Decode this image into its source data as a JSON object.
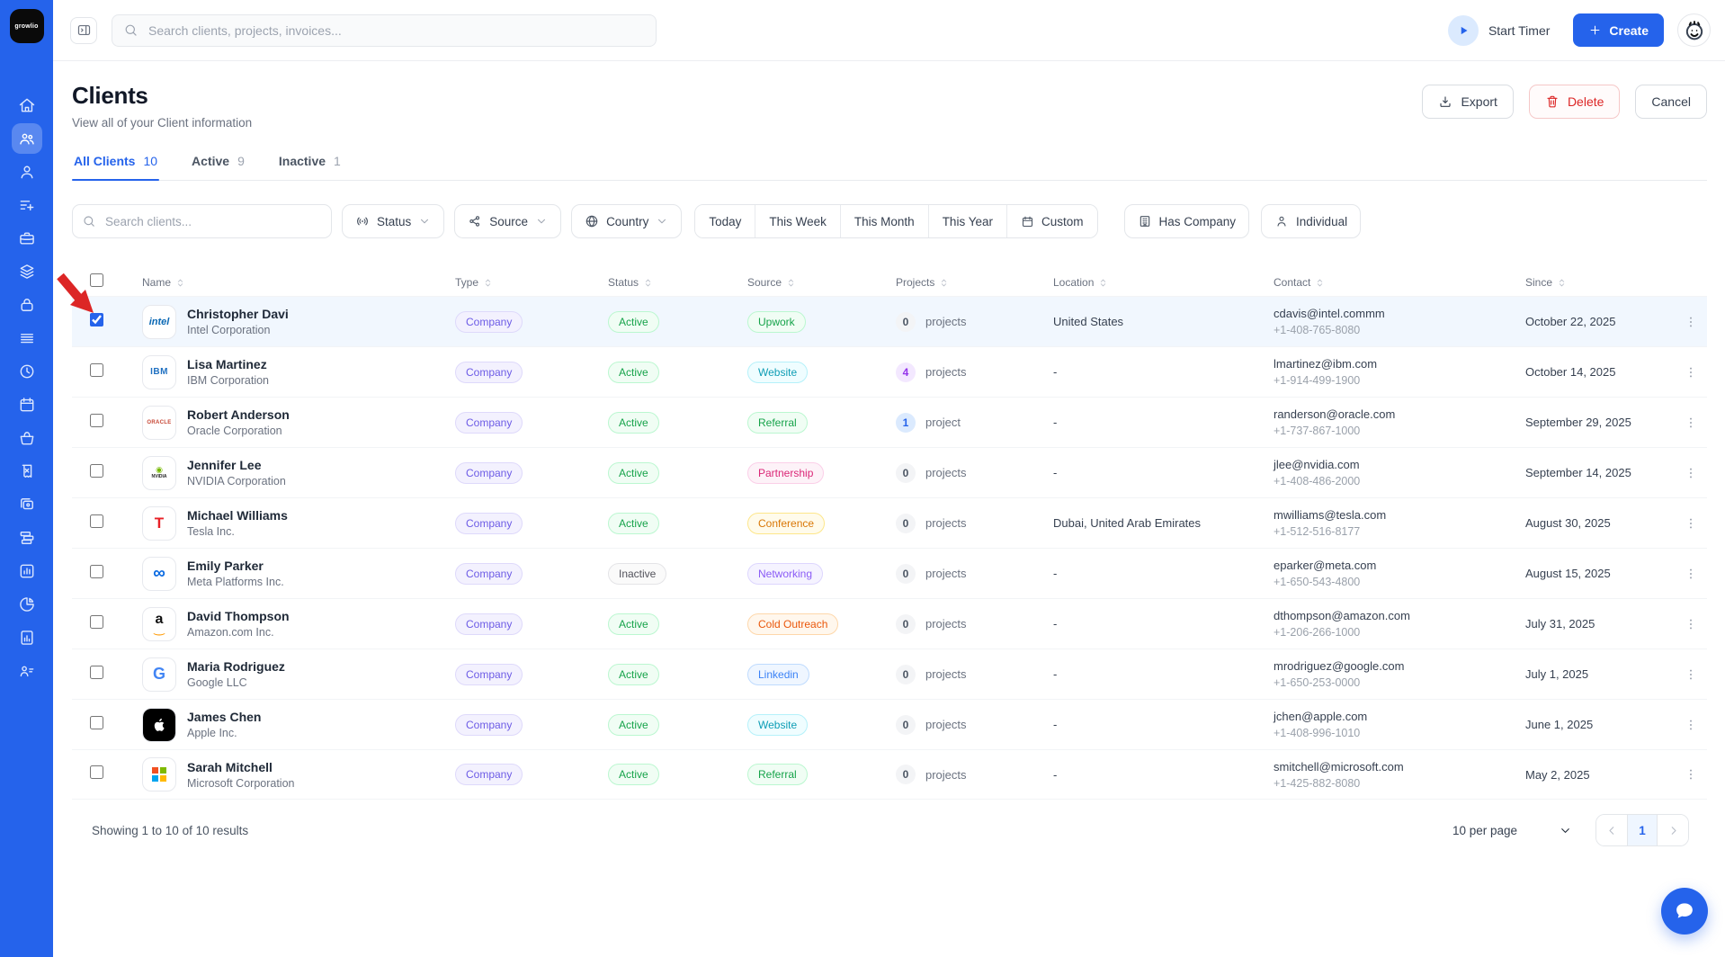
{
  "colors": {
    "accent": "#2563eb",
    "danger": "#dc2626",
    "sidebar_bg": "#2563eb",
    "selected_row_bg": "#f1f7fe",
    "annotation_arrow": "#dc2626"
  },
  "topbar": {
    "logo_text": "growlio",
    "search_placeholder": "Search clients, projects, invoices...",
    "start_timer_label": "Start Timer",
    "create_label": "Create"
  },
  "sidebar": {
    "items": [
      {
        "icon": "home",
        "active": false
      },
      {
        "icon": "clients",
        "active": true
      },
      {
        "icon": "contact",
        "active": false
      },
      {
        "icon": "list-add",
        "active": false
      },
      {
        "icon": "briefcase",
        "active": false
      },
      {
        "icon": "layers",
        "active": false
      },
      {
        "icon": "lock-bag",
        "active": false
      },
      {
        "icon": "rows",
        "active": false
      },
      {
        "icon": "clock",
        "active": false
      },
      {
        "icon": "calendar",
        "active": false
      },
      {
        "icon": "basket",
        "active": false
      },
      {
        "icon": "receipt",
        "active": false
      },
      {
        "icon": "cards",
        "active": false
      },
      {
        "icon": "stack",
        "active": false
      },
      {
        "icon": "chart-square",
        "active": false
      },
      {
        "icon": "pie-chart",
        "active": false
      },
      {
        "icon": "report",
        "active": false
      },
      {
        "icon": "team",
        "active": false
      }
    ]
  },
  "page": {
    "title": "Clients",
    "subtitle": "View all of your Client information",
    "export_label": "Export",
    "delete_label": "Delete",
    "cancel_label": "Cancel"
  },
  "tabs": [
    {
      "label": "All Clients",
      "count": "10",
      "active": true
    },
    {
      "label": "Active",
      "count": "9",
      "active": false
    },
    {
      "label": "Inactive",
      "count": "1",
      "active": false
    }
  ],
  "filters": {
    "search_placeholder": "Search clients...",
    "dropdowns": [
      {
        "label": "Status",
        "icon": "status"
      },
      {
        "label": "Source",
        "icon": "share"
      },
      {
        "label": "Country",
        "icon": "globe"
      }
    ],
    "date_ranges": [
      "Today",
      "This Week",
      "This Month",
      "This Year"
    ],
    "custom_label": "Custom",
    "toggles": [
      {
        "label": "Has Company",
        "icon": "building"
      },
      {
        "label": "Individual",
        "icon": "person"
      }
    ]
  },
  "table": {
    "columns": [
      "Name",
      "Type",
      "Status",
      "Source",
      "Projects",
      "Location",
      "Contact",
      "Since"
    ],
    "rows": [
      {
        "name": "Christopher Davi",
        "company": "Intel Corporation",
        "logo": "intel",
        "type": "Company",
        "status": {
          "label": "Active",
          "color": "green"
        },
        "source": {
          "label": "Upwork",
          "color": "green"
        },
        "projects": {
          "count": "0",
          "label": "projects",
          "color": "gray"
        },
        "location": "United States",
        "email": "cdavis@intel.commm",
        "phone": "+1-408-765-8080",
        "since": "October 22, 2025",
        "selected": true
      },
      {
        "name": "Lisa Martinez",
        "company": "IBM Corporation",
        "logo": "ibm",
        "type": "Company",
        "status": {
          "label": "Active",
          "color": "green"
        },
        "source": {
          "label": "Website",
          "color": "cyan"
        },
        "projects": {
          "count": "4",
          "label": "projects",
          "color": "purple"
        },
        "location": "-",
        "email": "lmartinez@ibm.com",
        "phone": "+1-914-499-1900",
        "since": "October 14, 2025",
        "selected": false
      },
      {
        "name": "Robert Anderson",
        "company": "Oracle Corporation",
        "logo": "oracle",
        "type": "Company",
        "status": {
          "label": "Active",
          "color": "green"
        },
        "source": {
          "label": "Referral",
          "color": "green"
        },
        "projects": {
          "count": "1",
          "label": "project",
          "color": "blue"
        },
        "location": "-",
        "email": "randerson@oracle.com",
        "phone": "+1-737-867-1000",
        "since": "September 29, 2025",
        "selected": false
      },
      {
        "name": "Jennifer Lee",
        "company": "NVIDIA Corporation",
        "logo": "nvidia",
        "type": "Company",
        "status": {
          "label": "Active",
          "color": "green"
        },
        "source": {
          "label": "Partnership",
          "color": "pink"
        },
        "projects": {
          "count": "0",
          "label": "projects",
          "color": "gray"
        },
        "location": "-",
        "email": "jlee@nvidia.com",
        "phone": "+1-408-486-2000",
        "since": "September 14, 2025",
        "selected": false
      },
      {
        "name": "Michael Williams",
        "company": "Tesla Inc.",
        "logo": "tesla",
        "type": "Company",
        "status": {
          "label": "Active",
          "color": "green"
        },
        "source": {
          "label": "Conference",
          "color": "amber"
        },
        "projects": {
          "count": "0",
          "label": "projects",
          "color": "gray"
        },
        "location": "Dubai, United Arab Emirates",
        "email": "mwilliams@tesla.com",
        "phone": "+1-512-516-8177",
        "since": "August 30, 2025",
        "selected": false
      },
      {
        "name": "Emily Parker",
        "company": "Meta Platforms Inc.",
        "logo": "meta",
        "type": "Company",
        "status": {
          "label": "Inactive",
          "color": "gray"
        },
        "source": {
          "label": "Networking",
          "color": "purple"
        },
        "projects": {
          "count": "0",
          "label": "projects",
          "color": "gray"
        },
        "location": "-",
        "email": "eparker@meta.com",
        "phone": "+1-650-543-4800",
        "since": "August 15, 2025",
        "selected": false
      },
      {
        "name": "David Thompson",
        "company": "Amazon.com Inc.",
        "logo": "amazon",
        "type": "Company",
        "status": {
          "label": "Active",
          "color": "green"
        },
        "source": {
          "label": "Cold Outreach",
          "color": "orange"
        },
        "projects": {
          "count": "0",
          "label": "projects",
          "color": "gray"
        },
        "location": "-",
        "email": "dthompson@amazon.com",
        "phone": "+1-206-266-1000",
        "since": "July 31, 2025",
        "selected": false
      },
      {
        "name": "Maria Rodriguez",
        "company": "Google LLC",
        "logo": "google",
        "type": "Company",
        "status": {
          "label": "Active",
          "color": "green"
        },
        "source": {
          "label": "Linkedin",
          "color": "blue"
        },
        "projects": {
          "count": "0",
          "label": "projects",
          "color": "gray"
        },
        "location": "-",
        "email": "mrodriguez@google.com",
        "phone": "+1-650-253-0000",
        "since": "July 1, 2025",
        "selected": false
      },
      {
        "name": "James Chen",
        "company": "Apple Inc.",
        "logo": "apple",
        "type": "Company",
        "status": {
          "label": "Active",
          "color": "green"
        },
        "source": {
          "label": "Website",
          "color": "cyan"
        },
        "projects": {
          "count": "0",
          "label": "projects",
          "color": "gray"
        },
        "location": "-",
        "email": "jchen@apple.com",
        "phone": "+1-408-996-1010",
        "since": "June 1, 2025",
        "selected": false
      },
      {
        "name": "Sarah Mitchell",
        "company": "Microsoft Corporation",
        "logo": "microsoft",
        "type": "Company",
        "status": {
          "label": "Active",
          "color": "green"
        },
        "source": {
          "label": "Referral",
          "color": "green"
        },
        "projects": {
          "count": "0",
          "label": "projects",
          "color": "gray"
        },
        "location": "-",
        "email": "smitchell@microsoft.com",
        "phone": "+1-425-882-8080",
        "since": "May 2, 2025",
        "selected": false
      }
    ]
  },
  "footer": {
    "summary": "Showing 1 to 10 of 10 results",
    "per_page": "10 per page",
    "page": "1"
  }
}
